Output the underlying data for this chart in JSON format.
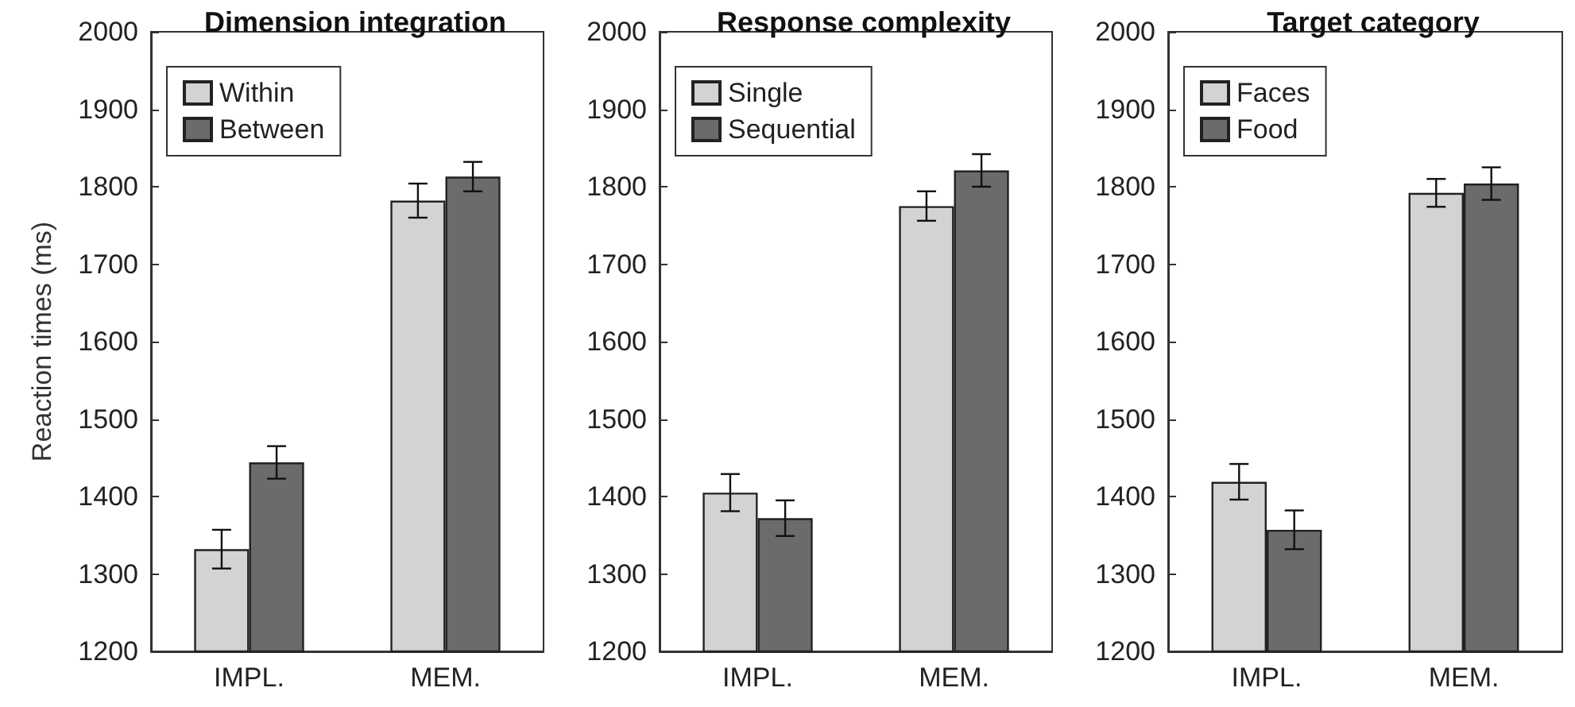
{
  "chart_data": [
    {
      "type": "bar",
      "title": "Dimension integration",
      "ylabel": "Reaction times (ms)",
      "categories": [
        "IMPL.",
        "MEM."
      ],
      "ylim": [
        1200,
        2000
      ],
      "yticks": [
        1200,
        1300,
        1400,
        1500,
        1600,
        1700,
        1800,
        1900,
        2000
      ],
      "grid": false,
      "legend": "top left",
      "series": [
        {
          "name": "Within",
          "color": "#d3d3d3",
          "values": [
            1332,
            1782
          ],
          "errors": [
            25,
            22
          ]
        },
        {
          "name": "Between",
          "color": "#6b6b6b",
          "values": [
            1444,
            1813
          ],
          "errors": [
            21,
            19
          ]
        }
      ]
    },
    {
      "type": "bar",
      "title": "Response complexity",
      "categories": [
        "IMPL.",
        "MEM."
      ],
      "ylim": [
        1200,
        2000
      ],
      "yticks": [
        1200,
        1300,
        1400,
        1500,
        1600,
        1700,
        1800,
        1900,
        2000
      ],
      "grid": false,
      "legend": "top left",
      "series": [
        {
          "name": "Single",
          "color": "#d3d3d3",
          "values": [
            1405,
            1775
          ],
          "errors": [
            24,
            19
          ]
        },
        {
          "name": "Sequential",
          "color": "#6b6b6b",
          "values": [
            1372,
            1821
          ],
          "errors": [
            23,
            21
          ]
        }
      ]
    },
    {
      "type": "bar",
      "title": "Target category",
      "categories": [
        "IMPL.",
        "MEM."
      ],
      "ylim": [
        1200,
        2000
      ],
      "yticks": [
        1200,
        1300,
        1400,
        1500,
        1600,
        1700,
        1800,
        1900,
        2000
      ],
      "grid": false,
      "legend": "top left",
      "series": [
        {
          "name": "Faces",
          "color": "#d3d3d3",
          "values": [
            1419,
            1792
          ],
          "errors": [
            23,
            18
          ]
        },
        {
          "name": "Food",
          "color": "#6b6b6b",
          "values": [
            1357,
            1804
          ],
          "errors": [
            25,
            21
          ]
        }
      ]
    }
  ]
}
